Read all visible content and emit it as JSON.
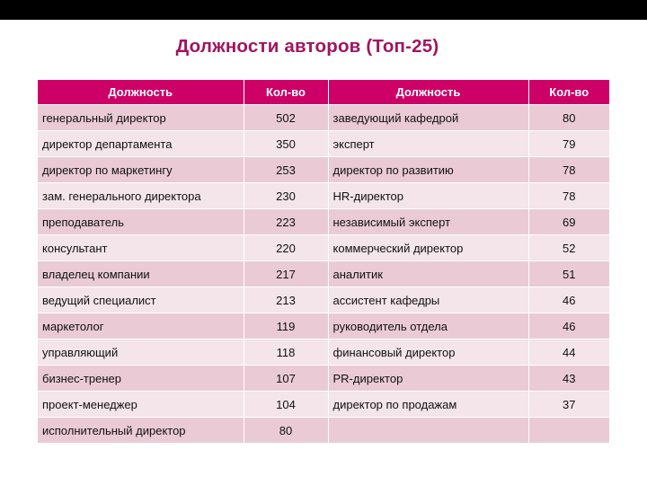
{
  "title": "Должности авторов (Топ-25)",
  "colors": {
    "title": "#a01460",
    "header_bg": "#cc0066",
    "row_dark": "#eacbd5",
    "row_light": "#f4e5ea"
  },
  "table": {
    "headers": [
      "Должность",
      "Кол-во",
      "Должность",
      "Кол-во"
    ],
    "rows": [
      {
        "pos1": "генеральный директор",
        "cnt1": "502",
        "pos2": "заведующий кафедрой",
        "cnt2": "80"
      },
      {
        "pos1": "директор департамента",
        "cnt1": "350",
        "pos2": "эксперт",
        "cnt2": "79"
      },
      {
        "pos1": "директор по маркетингу",
        "cnt1": "253",
        "pos2": "директор по развитию",
        "cnt2": "78"
      },
      {
        "pos1": "зам. генерального директора",
        "cnt1": "230",
        "pos2": "HR-директор",
        "cnt2": "78"
      },
      {
        "pos1": "преподаватель",
        "cnt1": "223",
        "pos2": "независимый эксперт",
        "cnt2": "69"
      },
      {
        "pos1": "консультант",
        "cnt1": "220",
        "pos2": "коммерческий директор",
        "cnt2": "52"
      },
      {
        "pos1": "владелец компании",
        "cnt1": "217",
        "pos2": "аналитик",
        "cnt2": "51"
      },
      {
        "pos1": "ведущий специалист",
        "cnt1": "213",
        "pos2": "ассистент кафедры",
        "cnt2": "46"
      },
      {
        "pos1": "маркетолог",
        "cnt1": "119",
        "pos2": "руководитель отдела",
        "cnt2": "46"
      },
      {
        "pos1": "управляющий",
        "cnt1": "118",
        "pos2": "финансовый директор",
        "cnt2": "44"
      },
      {
        "pos1": "бизнес-тренер",
        "cnt1": "107",
        "pos2": "PR-директор",
        "cnt2": "43"
      },
      {
        "pos1": "проект-менеджер",
        "cnt1": "104",
        "pos2": "директор по продажам",
        "cnt2": "37"
      },
      {
        "pos1": "исполнительный директор",
        "cnt1": "80",
        "pos2": "",
        "cnt2": ""
      }
    ]
  }
}
